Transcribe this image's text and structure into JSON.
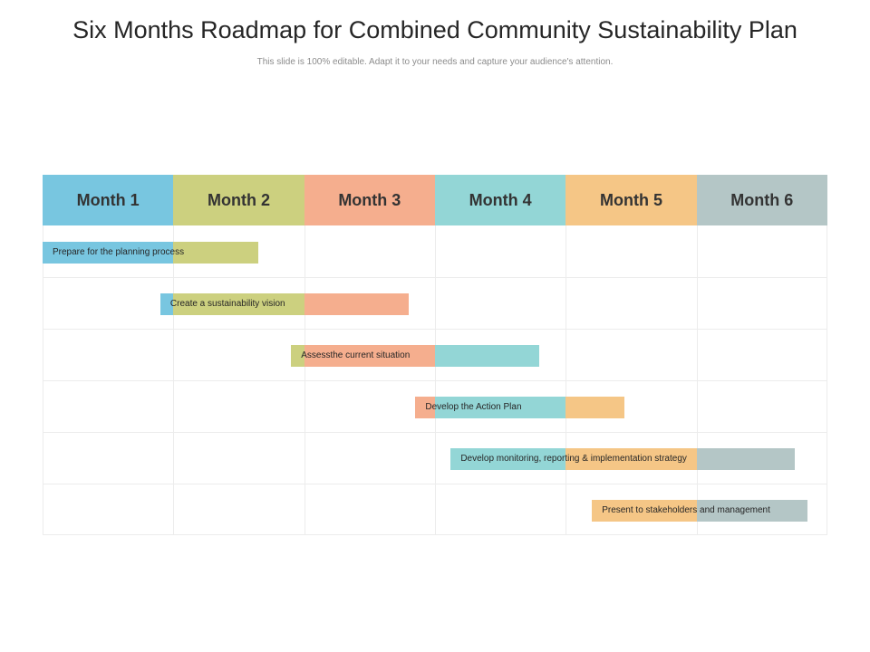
{
  "title": "Six Months Roadmap for Combined Community Sustainability Plan",
  "subtitle": "This slide is 100% editable.  Adapt it to your needs and capture your audience's attention.",
  "colors": {
    "month1": "#78c6e0",
    "month2": "#ccd07f",
    "month3": "#f5ae8e",
    "month4": "#93d6d6",
    "month5": "#f5c686",
    "month6": "#b4c6c6"
  },
  "months": [
    {
      "label": "Month 1",
      "color": "#78c6e0"
    },
    {
      "label": "Month 2",
      "color": "#ccd07f"
    },
    {
      "label": "Month 3",
      "color": "#f5ae8e"
    },
    {
      "label": "Month 4",
      "color": "#93d6d6"
    },
    {
      "label": "Month 5",
      "color": "#f5c686"
    },
    {
      "label": "Month 6",
      "color": "#b4c6c6"
    }
  ],
  "tasks": [
    {
      "label": "Prepare for the planning process",
      "start": 0.0,
      "end": 1.65
    },
    {
      "label": "Create a sustainability vision",
      "start": 0.9,
      "end": 2.8
    },
    {
      "label": "Assessthe current situation",
      "start": 1.9,
      "end": 3.8
    },
    {
      "label": "Develop the Action Plan",
      "start": 2.85,
      "end": 4.45
    },
    {
      "label": "Develop monitoring, reporting & implementation  strategy",
      "start": 3.12,
      "end": 5.75
    },
    {
      "label": "Present to stakeholders and management",
      "start": 4.2,
      "end": 5.85
    }
  ]
}
